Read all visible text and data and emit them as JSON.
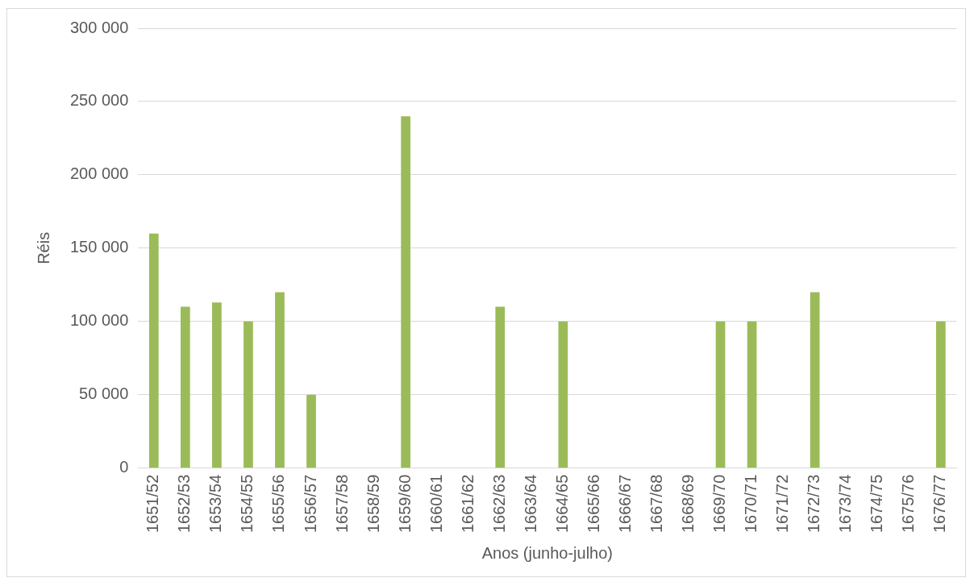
{
  "chart_data": {
    "type": "bar",
    "xlabel": "Anos (junho-julho)",
    "ylabel": "Réis",
    "categories": [
      "1651/52",
      "1652/53",
      "1653/54",
      "1654/55",
      "1655/56",
      "1656/57",
      "1657/58",
      "1658/59",
      "1659/60",
      "1660/61",
      "1661/62",
      "1662/63",
      "1663/64",
      "1664/65",
      "1665/66",
      "1666/67",
      "1667/68",
      "1668/69",
      "1669/70",
      "1670/71",
      "1671/72",
      "1672/73",
      "1673/74",
      "1674/75",
      "1675/76",
      "1676/77"
    ],
    "values": [
      160000,
      110000,
      113000,
      100000,
      120000,
      50000,
      0,
      0,
      240000,
      0,
      0,
      110000,
      0,
      100000,
      0,
      0,
      0,
      0,
      100000,
      100000,
      0,
      120000,
      0,
      0,
      0,
      100000
    ],
    "color": "#9bbb59",
    "ylim": [
      0,
      300000
    ],
    "yticks": [
      {
        "value": 0,
        "label": "0"
      },
      {
        "value": 50000,
        "label": "50 000"
      },
      {
        "value": 100000,
        "label": "100 000"
      },
      {
        "value": 150000,
        "label": "150 000"
      },
      {
        "value": 200000,
        "label": "200 000"
      },
      {
        "value": 250000,
        "label": "250 000"
      },
      {
        "value": 300000,
        "label": "300 000"
      }
    ],
    "grid": "y",
    "legend": false
  }
}
